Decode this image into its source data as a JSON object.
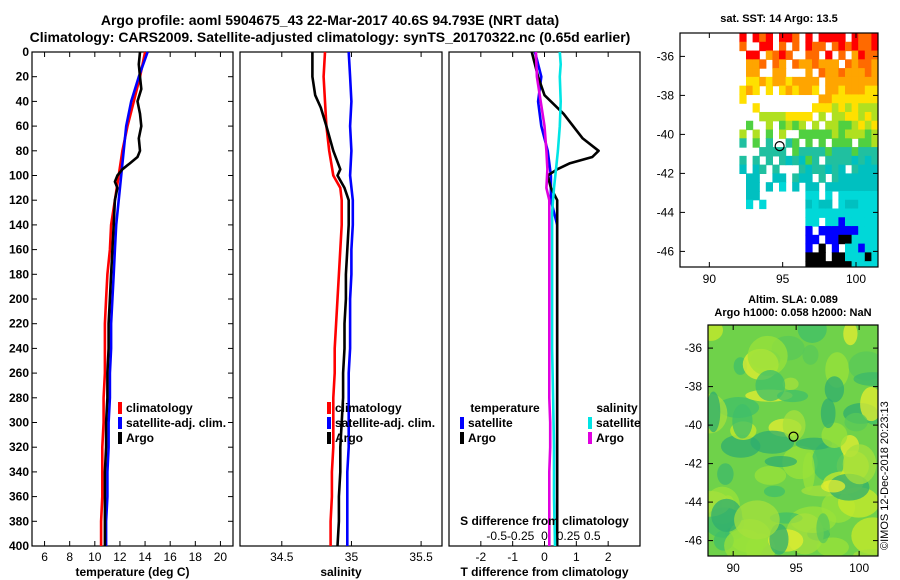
{
  "header": {
    "title_line1": "Argo profile: aoml 5904675_43 22-Mar-2017 40.6S 94.793E (NRT data)",
    "title_line2": "Climatology: CARS2009. Satellite-adjusted climatology: synTS_20170322.nc (0.65d earlier)"
  },
  "footer": {
    "stamp": "©IMOS 12-Dec-2018 20:23:13"
  },
  "colors": {
    "climatology": "#ff0000",
    "satellite": "#0000ff",
    "argo": "#000000",
    "sat_salinity": "#00e5e5",
    "argo_salinity": "#e000e0"
  },
  "chart_data": [
    {
      "type": "line",
      "title": "",
      "xlabel": "temperature (deg C)",
      "ylabel": "",
      "xlim": [
        5,
        21
      ],
      "ylim": [
        400,
        0
      ],
      "xticks": [
        6,
        8,
        10,
        12,
        14,
        16,
        18,
        20
      ],
      "yticks": [
        0,
        20,
        40,
        60,
        80,
        100,
        120,
        140,
        160,
        180,
        200,
        220,
        240,
        260,
        280,
        300,
        320,
        340,
        360,
        380,
        400
      ],
      "legend": [
        "climatology",
        "satellite-adj. clim.",
        "Argo"
      ],
      "series": [
        {
          "name": "climatology",
          "color": "#ff0000",
          "points": [
            [
              14.0,
              0
            ],
            [
              13.6,
              20
            ],
            [
              13.1,
              40
            ],
            [
              12.6,
              60
            ],
            [
              12.2,
              80
            ],
            [
              11.9,
              100
            ],
            [
              11.6,
              120
            ],
            [
              11.3,
              140
            ],
            [
              11.2,
              160
            ],
            [
              11.0,
              180
            ],
            [
              10.9,
              200
            ],
            [
              10.8,
              220
            ],
            [
              10.8,
              240
            ],
            [
              10.8,
              260
            ],
            [
              10.7,
              280
            ],
            [
              10.7,
              300
            ],
            [
              10.6,
              320
            ],
            [
              10.6,
              340
            ],
            [
              10.6,
              360
            ],
            [
              10.5,
              380
            ],
            [
              10.5,
              400
            ]
          ]
        },
        {
          "name": "satellite-adj. clim.",
          "color": "#0000ff",
          "points": [
            [
              14.2,
              0
            ],
            [
              13.5,
              20
            ],
            [
              12.9,
              40
            ],
            [
              12.5,
              60
            ],
            [
              12.3,
              80
            ],
            [
              12.1,
              100
            ],
            [
              11.9,
              120
            ],
            [
              11.7,
              140
            ],
            [
              11.6,
              160
            ],
            [
              11.5,
              180
            ],
            [
              11.4,
              200
            ],
            [
              11.3,
              220
            ],
            [
              11.3,
              240
            ],
            [
              11.2,
              260
            ],
            [
              11.2,
              280
            ],
            [
              11.1,
              300
            ],
            [
              11.1,
              320
            ],
            [
              11.0,
              340
            ],
            [
              11.0,
              360
            ],
            [
              10.9,
              380
            ],
            [
              10.9,
              400
            ]
          ]
        },
        {
          "name": "Argo",
          "color": "#000000",
          "points": [
            [
              13.6,
              0
            ],
            [
              13.5,
              10
            ],
            [
              13.6,
              20
            ],
            [
              13.7,
              30
            ],
            [
              13.4,
              40
            ],
            [
              13.6,
              50
            ],
            [
              13.7,
              60
            ],
            [
              13.5,
              70
            ],
            [
              13.6,
              80
            ],
            [
              13.4,
              85
            ],
            [
              12.8,
              90
            ],
            [
              12.2,
              95
            ],
            [
              11.8,
              100
            ],
            [
              11.6,
              105
            ],
            [
              11.8,
              110
            ],
            [
              11.6,
              120
            ],
            [
              11.5,
              140
            ],
            [
              11.4,
              160
            ],
            [
              11.3,
              180
            ],
            [
              11.2,
              200
            ],
            [
              11.1,
              220
            ],
            [
              11.1,
              240
            ],
            [
              11.0,
              260
            ],
            [
              11.0,
              280
            ],
            [
              10.9,
              300
            ],
            [
              10.9,
              320
            ],
            [
              10.8,
              340
            ],
            [
              10.8,
              360
            ],
            [
              10.8,
              380
            ],
            [
              10.8,
              400
            ]
          ]
        }
      ]
    },
    {
      "type": "line",
      "xlabel": "salinity",
      "xlim": [
        34.2,
        35.65
      ],
      "ylim": [
        400,
        0
      ],
      "xticks": [
        34.5,
        35,
        35.5
      ],
      "legend": [
        "climatology",
        "satellite-adj. clim.",
        "Argo"
      ],
      "series": [
        {
          "name": "climatology",
          "color": "#ff0000",
          "points": [
            [
              34.81,
              0
            ],
            [
              34.8,
              20
            ],
            [
              34.81,
              40
            ],
            [
              34.82,
              60
            ],
            [
              34.84,
              80
            ],
            [
              34.87,
              100
            ],
            [
              34.92,
              110
            ],
            [
              34.93,
              120
            ],
            [
              34.93,
              140
            ],
            [
              34.92,
              160
            ],
            [
              34.91,
              180
            ],
            [
              34.9,
              200
            ],
            [
              34.89,
              220
            ],
            [
              34.88,
              240
            ],
            [
              34.88,
              260
            ],
            [
              34.87,
              280
            ],
            [
              34.87,
              300
            ],
            [
              34.87,
              320
            ],
            [
              34.86,
              340
            ],
            [
              34.86,
              360
            ],
            [
              34.85,
              380
            ],
            [
              34.85,
              400
            ]
          ]
        },
        {
          "name": "satellite-adj. clim.",
          "color": "#0000ff",
          "points": [
            [
              34.98,
              0
            ],
            [
              34.99,
              20
            ],
            [
              35.0,
              40
            ],
            [
              34.99,
              60
            ],
            [
              35.0,
              80
            ],
            [
              34.99,
              100
            ],
            [
              35.01,
              120
            ],
            [
              35.01,
              140
            ],
            [
              35.0,
              160
            ],
            [
              35.0,
              180
            ],
            [
              34.99,
              200
            ],
            [
              34.99,
              220
            ],
            [
              34.99,
              240
            ],
            [
              34.98,
              260
            ],
            [
              34.98,
              280
            ],
            [
              34.98,
              300
            ],
            [
              34.98,
              320
            ],
            [
              34.97,
              340
            ],
            [
              34.97,
              360
            ],
            [
              34.97,
              380
            ],
            [
              34.97,
              400
            ]
          ]
        },
        {
          "name": "Argo",
          "color": "#000000",
          "points": [
            [
              34.72,
              0
            ],
            [
              34.72,
              20
            ],
            [
              34.74,
              35
            ],
            [
              34.78,
              45
            ],
            [
              34.82,
              60
            ],
            [
              34.87,
              80
            ],
            [
              34.92,
              95
            ],
            [
              34.9,
              100
            ],
            [
              34.95,
              110
            ],
            [
              34.98,
              120
            ],
            [
              34.98,
              140
            ],
            [
              34.97,
              160
            ],
            [
              34.96,
              180
            ],
            [
              34.96,
              200
            ],
            [
              34.95,
              220
            ],
            [
              34.95,
              240
            ],
            [
              34.94,
              260
            ],
            [
              34.94,
              280
            ],
            [
              34.93,
              300
            ],
            [
              34.92,
              320
            ],
            [
              34.92,
              340
            ],
            [
              34.91,
              360
            ],
            [
              34.91,
              380
            ],
            [
              34.9,
              400
            ]
          ]
        }
      ]
    },
    {
      "type": "line",
      "xlabel": "T difference from climatology",
      "xlabel_top": "S difference from climatology",
      "xlim": [
        -3,
        3
      ],
      "ylim": [
        400,
        0
      ],
      "xticks": [
        -2,
        -1,
        0,
        1,
        2
      ],
      "xticks_top": [
        -0.5,
        -0.25,
        0,
        0.25,
        0.5
      ],
      "xticks_top_labels": [
        "-0.5",
        "-0.25",
        "0",
        "0.25",
        "0.5"
      ],
      "legend_temperature": {
        "title": "temperature",
        "items": [
          "satellite",
          "Argo"
        ]
      },
      "legend_salinity": {
        "title": "salinity",
        "items": [
          "satellite",
          "Argo"
        ]
      },
      "series": [
        {
          "name": "temperature satellite",
          "color": "#0000ff",
          "points": [
            [
              -0.3,
              0
            ],
            [
              -0.1,
              20
            ],
            [
              -0.2,
              40
            ],
            [
              -0.1,
              60
            ],
            [
              0.1,
              80
            ],
            [
              0.2,
              100
            ],
            [
              0.2,
              120
            ],
            [
              0.4,
              140
            ],
            [
              0.4,
              160
            ],
            [
              0.4,
              180
            ],
            [
              0.4,
              200
            ],
            [
              0.4,
              220
            ],
            [
              0.4,
              240
            ],
            [
              0.4,
              260
            ],
            [
              0.4,
              280
            ],
            [
              0.4,
              300
            ],
            [
              0.4,
              320
            ],
            [
              0.4,
              340
            ],
            [
              0.4,
              360
            ],
            [
              0.4,
              380
            ],
            [
              0.4,
              400
            ]
          ]
        },
        {
          "name": "temperature Argo",
          "color": "#000000",
          "points": [
            [
              -0.4,
              0
            ],
            [
              -0.2,
              20
            ],
            [
              0.0,
              35
            ],
            [
              0.6,
              50
            ],
            [
              0.9,
              60
            ],
            [
              1.2,
              70
            ],
            [
              1.7,
              80
            ],
            [
              1.5,
              85
            ],
            [
              0.8,
              90
            ],
            [
              0.4,
              95
            ],
            [
              0.1,
              100
            ],
            [
              0.2,
              110
            ],
            [
              0.4,
              120
            ],
            [
              0.4,
              140
            ],
            [
              0.4,
              160
            ],
            [
              0.4,
              180
            ],
            [
              0.4,
              200
            ],
            [
              0.4,
              220
            ],
            [
              0.4,
              240
            ],
            [
              0.4,
              260
            ],
            [
              0.4,
              280
            ],
            [
              0.4,
              300
            ],
            [
              0.4,
              320
            ],
            [
              0.4,
              340
            ],
            [
              0.4,
              360
            ],
            [
              0.4,
              380
            ],
            [
              0.4,
              400
            ]
          ]
        },
        {
          "name": "salinity satellite",
          "color": "#00e5e5",
          "points": [
            [
              0.16,
              0
            ],
            [
              0.17,
              10
            ],
            [
              0.16,
              20
            ],
            [
              0.17,
              40
            ],
            [
              0.16,
              60
            ],
            [
              0.14,
              80
            ],
            [
              0.12,
              95
            ],
            [
              0.1,
              110
            ],
            [
              0.08,
              130
            ],
            [
              0.08,
              160
            ],
            [
              0.08,
              200
            ],
            [
              0.08,
              240
            ],
            [
              0.09,
              280
            ],
            [
              0.1,
              320
            ],
            [
              0.1,
              360
            ],
            [
              0.11,
              400
            ]
          ]
        },
        {
          "name": "salinity Argo",
          "color": "#e000e0",
          "points": [
            [
              -0.09,
              0
            ],
            [
              -0.08,
              20
            ],
            [
              -0.04,
              40
            ],
            [
              0.0,
              60
            ],
            [
              0.02,
              80
            ],
            [
              0.03,
              95
            ],
            [
              0.02,
              110
            ],
            [
              0.05,
              120
            ],
            [
              0.05,
              140
            ],
            [
              0.05,
              160
            ],
            [
              0.05,
              180
            ],
            [
              0.05,
              200
            ],
            [
              0.05,
              220
            ],
            [
              0.05,
              240
            ],
            [
              0.05,
              260
            ],
            [
              0.05,
              280
            ],
            [
              0.06,
              300
            ],
            [
              0.06,
              320
            ],
            [
              0.05,
              340
            ],
            [
              0.05,
              360
            ],
            [
              0.05,
              380
            ],
            [
              0.05,
              400
            ]
          ]
        }
      ]
    },
    {
      "type": "heatmap",
      "title": "sat. SST: 14 Argo: 13.5",
      "xlim": [
        88,
        101.5
      ],
      "ylim": [
        -46.8,
        -34.8
      ],
      "xticks": [
        90,
        95,
        100
      ],
      "yticks": [
        -36,
        -38,
        -40,
        -42,
        -44,
        -46
      ],
      "marker": {
        "lon": 94.793,
        "lat": -40.6
      }
    },
    {
      "type": "heatmap",
      "title": "Altim. SLA: 0.089",
      "subtitle": "Argo h1000: 0.058 h2000: NaN",
      "xlim": [
        88,
        101.5
      ],
      "ylim": [
        -46.8,
        -34.8
      ],
      "xticks": [
        90,
        95,
        100
      ],
      "yticks": [
        -36,
        -38,
        -40,
        -42,
        -44,
        -46
      ],
      "marker": {
        "lon": 94.793,
        "lat": -40.6
      }
    }
  ]
}
